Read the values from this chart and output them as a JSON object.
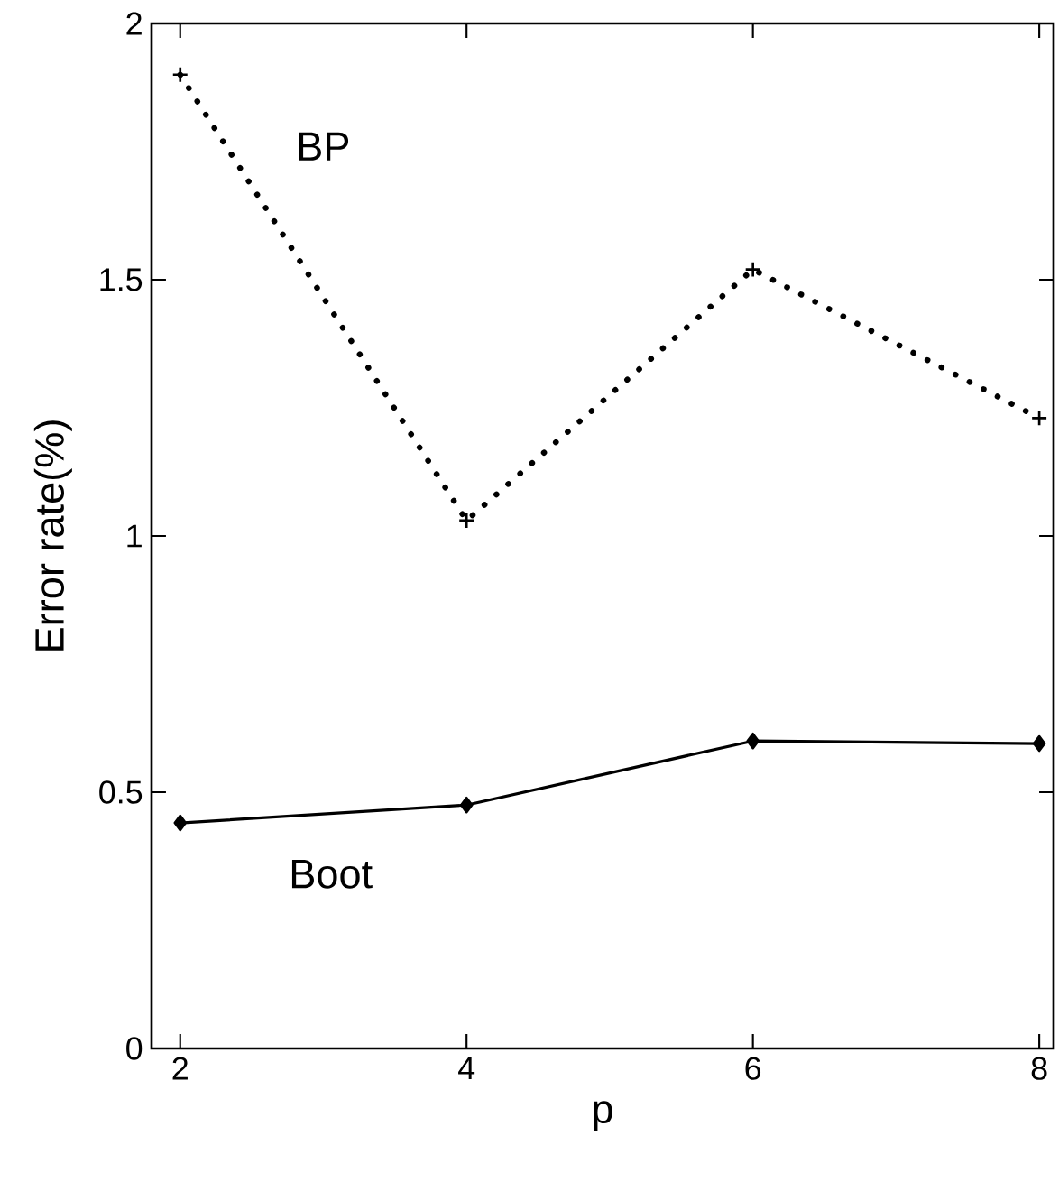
{
  "chart_data": {
    "type": "line",
    "xlabel": "p",
    "ylabel": "Error rate(%)",
    "x": [
      2,
      4,
      6,
      8
    ],
    "series": [
      {
        "name": "BP",
        "color": "#000000",
        "values": [
          1.9,
          1.03,
          1.52,
          1.23
        ],
        "marker": "cross",
        "line_style": "dotted"
      },
      {
        "name": "Boot",
        "color": "#000000",
        "values": [
          0.44,
          0.475,
          0.6,
          0.595
        ],
        "marker": "diamond",
        "line_style": "solid"
      }
    ],
    "xlim": [
      1.8,
      8.1
    ],
    "ylim": [
      0,
      2
    ],
    "xticks": [
      2,
      4,
      6,
      8
    ],
    "yticks": [
      0,
      0.5,
      1,
      1.5,
      2
    ],
    "grid": false,
    "legend": false
  }
}
